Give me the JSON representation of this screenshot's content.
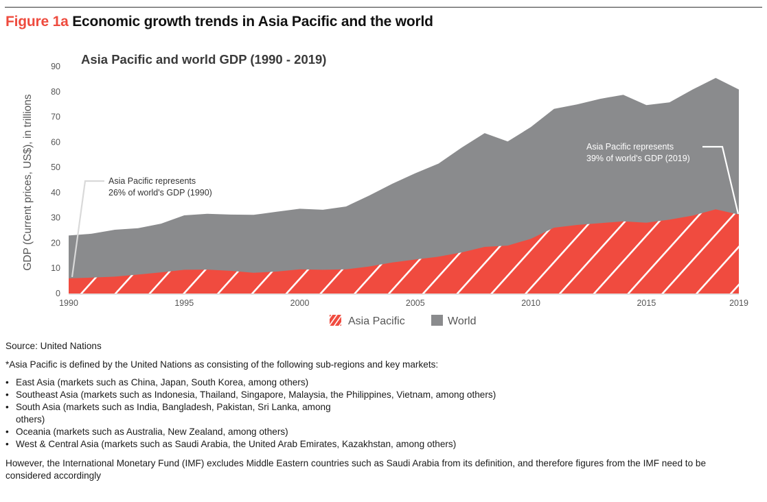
{
  "figure": {
    "number": "Figure 1a",
    "title": "Economic growth trends in Asia Pacific and the world"
  },
  "chart_data": {
    "type": "area",
    "title": "Asia Pacific and world  GDP (1990 - 2019)",
    "xlabel": "",
    "ylabel": "GDP (Current prices, US$), in trillions",
    "xlim": [
      1990,
      2019
    ],
    "ylim": [
      0,
      90
    ],
    "x_ticks": [
      "1990",
      "1995",
      "2000",
      "2005",
      "2010",
      "2015",
      "2019"
    ],
    "y_ticks": [
      "0",
      "10",
      "20",
      "30",
      "40",
      "50",
      "60",
      "70",
      "80",
      "90"
    ],
    "grid": false,
    "x": [
      1990,
      1991,
      1992,
      1993,
      1994,
      1995,
      1996,
      1997,
      1998,
      1999,
      2000,
      2001,
      2002,
      2003,
      2004,
      2005,
      2006,
      2007,
      2008,
      2009,
      2010,
      2011,
      2012,
      2013,
      2014,
      2015,
      2016,
      2017,
      2018,
      2019
    ],
    "series": [
      {
        "name": "World",
        "color": "#8a8b8d",
        "values": [
          23.0,
          23.7,
          25.3,
          25.9,
          27.7,
          31.0,
          31.6,
          31.3,
          31.2,
          32.4,
          33.6,
          33.2,
          34.5,
          38.8,
          43.5,
          47.7,
          51.5,
          57.8,
          63.6,
          60.3,
          66.0,
          73.2,
          75.0,
          77.2,
          78.8,
          74.7,
          75.8,
          80.9,
          85.5,
          80.9
        ]
      },
      {
        "name": "Asia Pacific",
        "color": "#f04b3f",
        "pattern": "diagonal-hatch",
        "values": [
          6.0,
          6.3,
          6.7,
          7.5,
          8.4,
          9.4,
          9.5,
          9.0,
          8.2,
          8.7,
          9.6,
          9.4,
          9.6,
          10.7,
          12.3,
          13.5,
          14.6,
          16.3,
          18.5,
          19.0,
          21.7,
          26.1,
          27.2,
          27.9,
          28.6,
          28.1,
          29.3,
          30.9,
          33.4,
          31.3
        ]
      }
    ],
    "annotations": [
      {
        "line1": "Asia Pacific represents",
        "line2": "26% of world's GDP (1990)",
        "year": 1990
      },
      {
        "line1": "Asia Pacific represents",
        "line2": "39% of world's GDP (2019)",
        "year": 2019
      }
    ],
    "legend": {
      "position": "bottom-center",
      "items": [
        {
          "label": "Asia Pacific",
          "swatch": "hatched-red"
        },
        {
          "label": "World",
          "swatch": "solid-gray"
        }
      ]
    }
  },
  "footer": {
    "source": "Source: United Nations",
    "definition": "*Asia Pacific is defined by the United Nations as consisting of the following sub-regions and key markets:",
    "regions": [
      "East Asia (markets such as China, Japan, South Korea, among others)",
      "Southeast Asia (markets such as Indonesia, Thailand, Singapore, Malaysia, the Philippines, Vietnam, among others)",
      "South Asia (markets such as India, Bangladesh, Pakistan, Sri Lanka, among others)",
      "Oceania (markets such as Australia, New Zealand, among others)",
      "West & Central Asia (markets such as Saudi Arabia, the United Arab Emirates, Kazakhstan, among others)"
    ],
    "imf_note": "However, the International Monetary Fund (IMF) excludes Middle Eastern countries such as Saudi Arabia from its definition, and therefore figures from the IMF need to be considered accordingly"
  }
}
